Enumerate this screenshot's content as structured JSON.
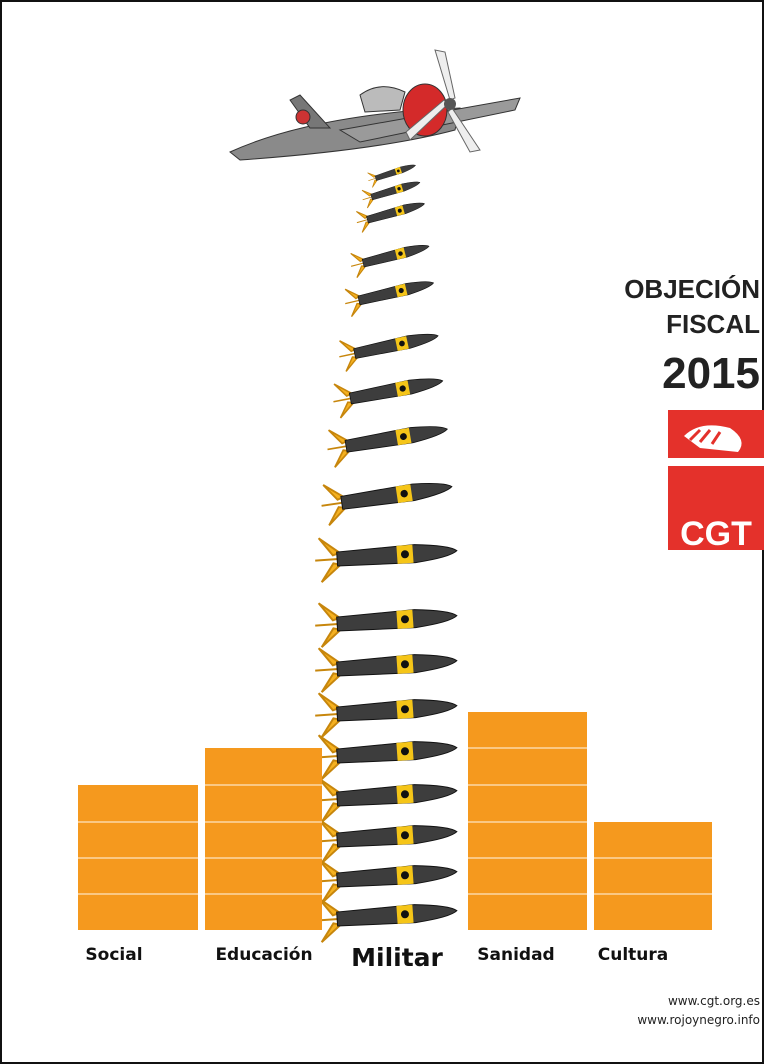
{
  "poster": {
    "title_lines": [
      "OBJECIÓN",
      "FISCAL",
      "2015"
    ],
    "logo_text": "CGT",
    "categories": [
      "Social",
      "Educación",
      "Militar",
      "Sanidad",
      "Cultura"
    ],
    "links": [
      "www.cgt.org.es",
      "www.rojoynegro.info"
    ]
  }
}
